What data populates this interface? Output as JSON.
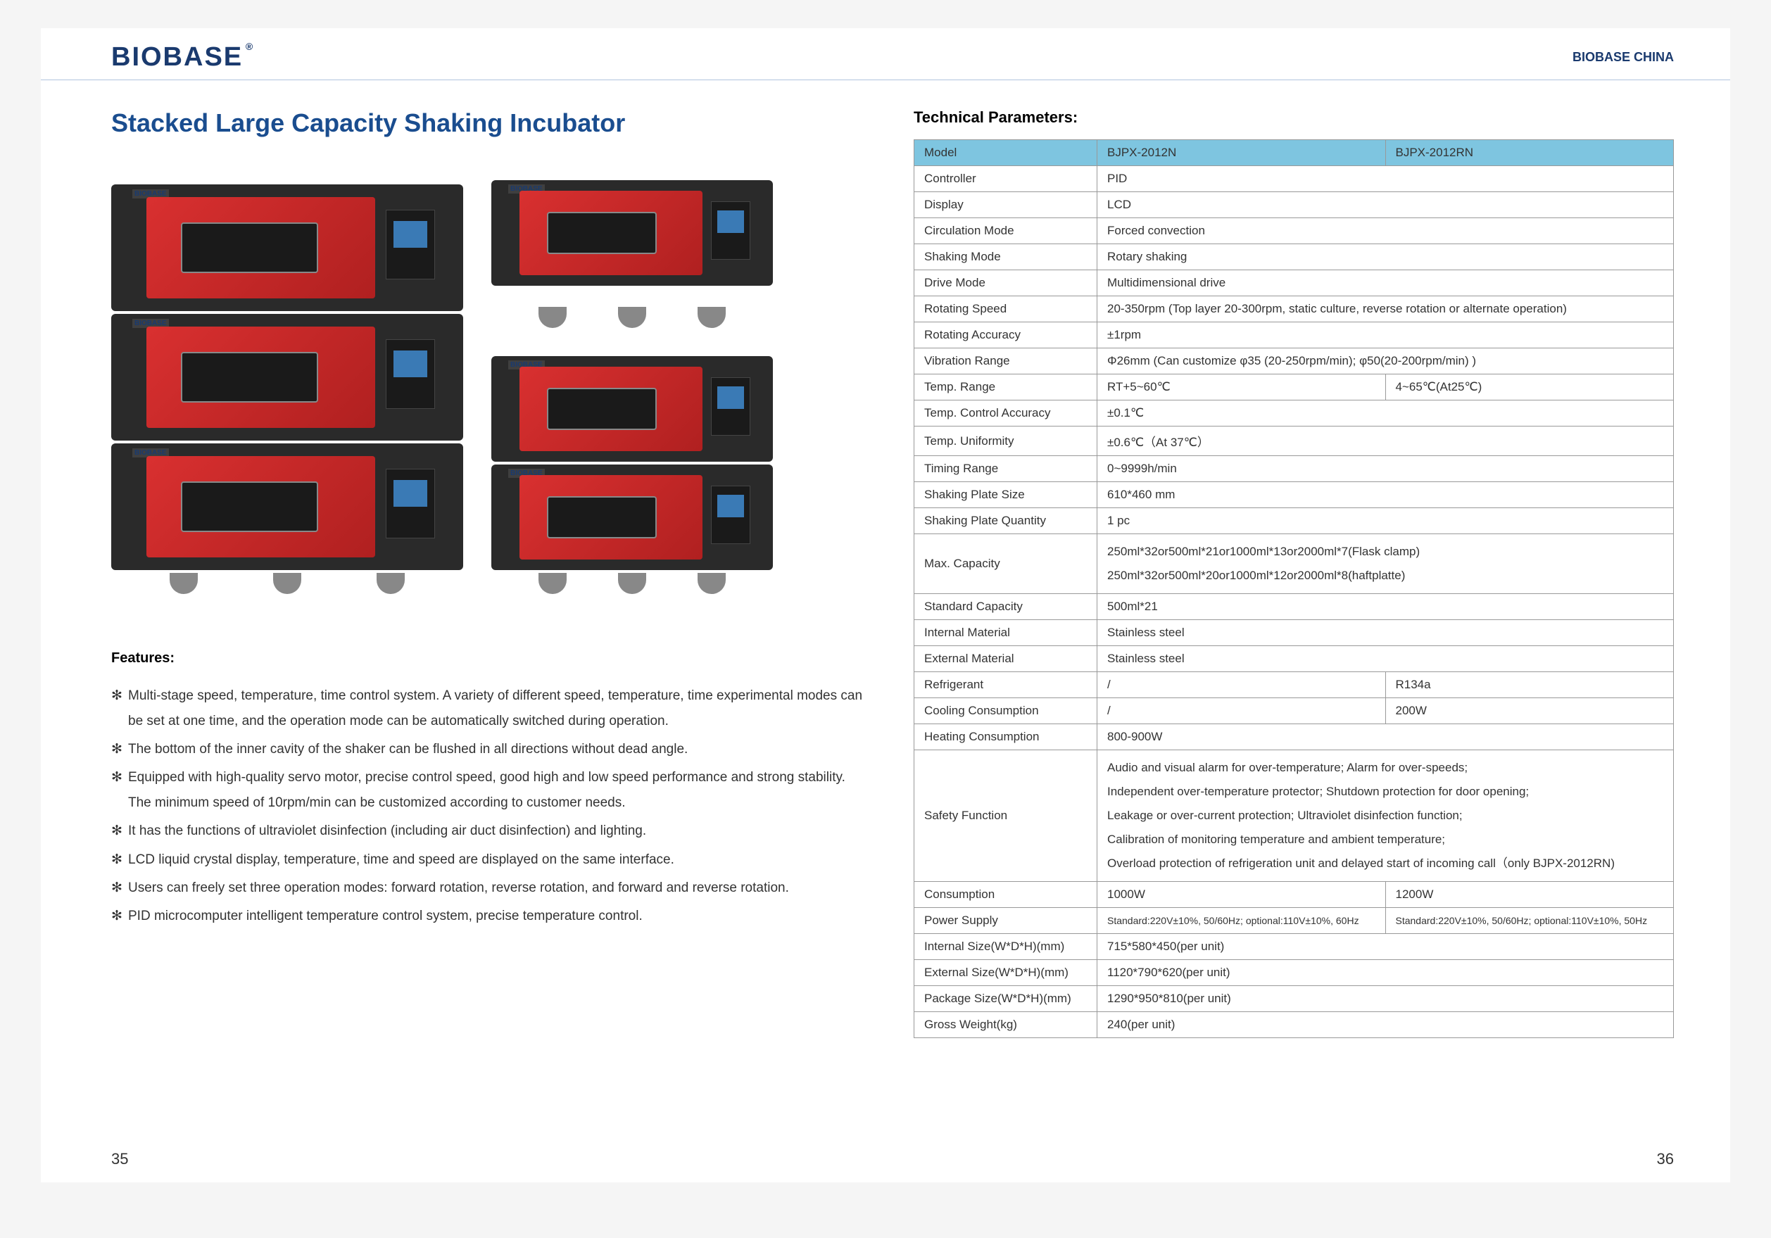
{
  "header": {
    "logo": "BIOBASE",
    "logo_suffix": "®",
    "right_text": "BIOBASE CHINA"
  },
  "title": "Stacked Large Capacity Shaking Incubator",
  "brand_label": "BIOBASE",
  "features": {
    "title": "Features:",
    "items": [
      "Multi-stage speed, temperature, time control system. A variety of different speed, temperature, time experimental modes can be set at one time, and the operation mode can be automatically switched during operation.",
      "The bottom of the inner cavity of the shaker can be flushed in all directions without dead angle.",
      "Equipped with high-quality servo motor, precise control speed, good high and low speed performance and strong stability. The minimum speed of 10rpm/min can be customized according to customer needs.",
      "It has the functions of ultraviolet disinfection (including air duct disinfection) and lighting.",
      "LCD liquid crystal display, temperature, time and speed are displayed on the same interface.",
      "Users can freely set three operation modes: forward rotation, reverse rotation, and forward and reverse rotation.",
      "PID microcomputer intelligent temperature control system, precise temperature control."
    ]
  },
  "params": {
    "title": "Technical Parameters:",
    "header": {
      "label": "Model",
      "col1": "BJPX-2012N",
      "col2": "BJPX-2012RN"
    },
    "rows": [
      {
        "label": "Controller",
        "value": "PID",
        "span": 2
      },
      {
        "label": "Display",
        "value": "LCD",
        "span": 2
      },
      {
        "label": "Circulation Mode",
        "value": "Forced convection",
        "span": 2
      },
      {
        "label": "Shaking Mode",
        "value": "Rotary shaking",
        "span": 2
      },
      {
        "label": "Drive Mode",
        "value": "Multidimensional drive",
        "span": 2
      },
      {
        "label": "Rotating Speed",
        "value": "20-350rpm (Top layer 20-300rpm, static culture, reverse rotation or alternate operation)",
        "span": 2
      },
      {
        "label": "Rotating Accuracy",
        "value": "±1rpm",
        "span": 2
      },
      {
        "label": "Vibration Range",
        "value": "Φ26mm (Can customize φ35 (20-250rpm/min); φ50(20-200rpm/min) )",
        "span": 2
      },
      {
        "label": "Temp. Range",
        "col1": "RT+5~60℃",
        "col2": "4~65℃(At25℃)"
      },
      {
        "label": "Temp. Control Accuracy",
        "value": "±0.1℃",
        "span": 2
      },
      {
        "label": "Temp. Uniformity",
        "value": "±0.6℃（At 37℃）",
        "span": 2
      },
      {
        "label": "Timing Range",
        "value": "0~9999h/min",
        "span": 2
      },
      {
        "label": "Shaking Plate Size",
        "value": "610*460 mm",
        "span": 2
      },
      {
        "label": "Shaking Plate Quantity",
        "value": "1 pc",
        "span": 2
      },
      {
        "label": "Max. Capacity",
        "value": "250ml*32or500ml*21or1000ml*13or2000ml*7(Flask clamp)\n250ml*32or500ml*20or1000ml*12or2000ml*8(haftplatte)",
        "span": 2,
        "multi": true
      },
      {
        "label": "Standard Capacity",
        "value": "500ml*21",
        "span": 2
      },
      {
        "label": "Internal Material",
        "value": "Stainless steel",
        "span": 2
      },
      {
        "label": "External Material",
        "value": "Stainless steel",
        "span": 2
      },
      {
        "label": "Refrigerant",
        "col1": "/",
        "col2": "R134a"
      },
      {
        "label": "Cooling Consumption",
        "col1": "/",
        "col2": "200W"
      },
      {
        "label": "Heating Consumption",
        "value": "800-900W",
        "span": 2
      },
      {
        "label": "Safety Function",
        "value": "Audio and visual alarm for over-temperature; Alarm for over-speeds;\nIndependent over-temperature protector; Shutdown protection for door opening;\nLeakage or over-current protection; Ultraviolet disinfection function;\nCalibration of monitoring temperature and ambient temperature;\nOverload protection of refrigeration unit and delayed start of incoming call（only BJPX-2012RN)",
        "span": 2,
        "multi": true
      },
      {
        "label": "Consumption",
        "col1": "1000W",
        "col2": "1200W"
      },
      {
        "label": "Power Supply",
        "col1": "Standard:220V±10%, 50/60Hz; optional:110V±10%, 60Hz",
        "col2": "Standard:220V±10%, 50/60Hz; optional:110V±10%, 50Hz",
        "small": true
      },
      {
        "label": "Internal Size(W*D*H)(mm)",
        "value": "715*580*450(per unit)",
        "span": 2
      },
      {
        "label": "External Size(W*D*H)(mm)",
        "value": "1120*790*620(per unit)",
        "span": 2
      },
      {
        "label": "Package Size(W*D*H)(mm)",
        "value": "1290*950*810(per unit)",
        "span": 2
      },
      {
        "label": "Gross Weight(kg)",
        "value": "240(per unit)",
        "span": 2
      }
    ]
  },
  "page_left": "35",
  "page_right": "36"
}
